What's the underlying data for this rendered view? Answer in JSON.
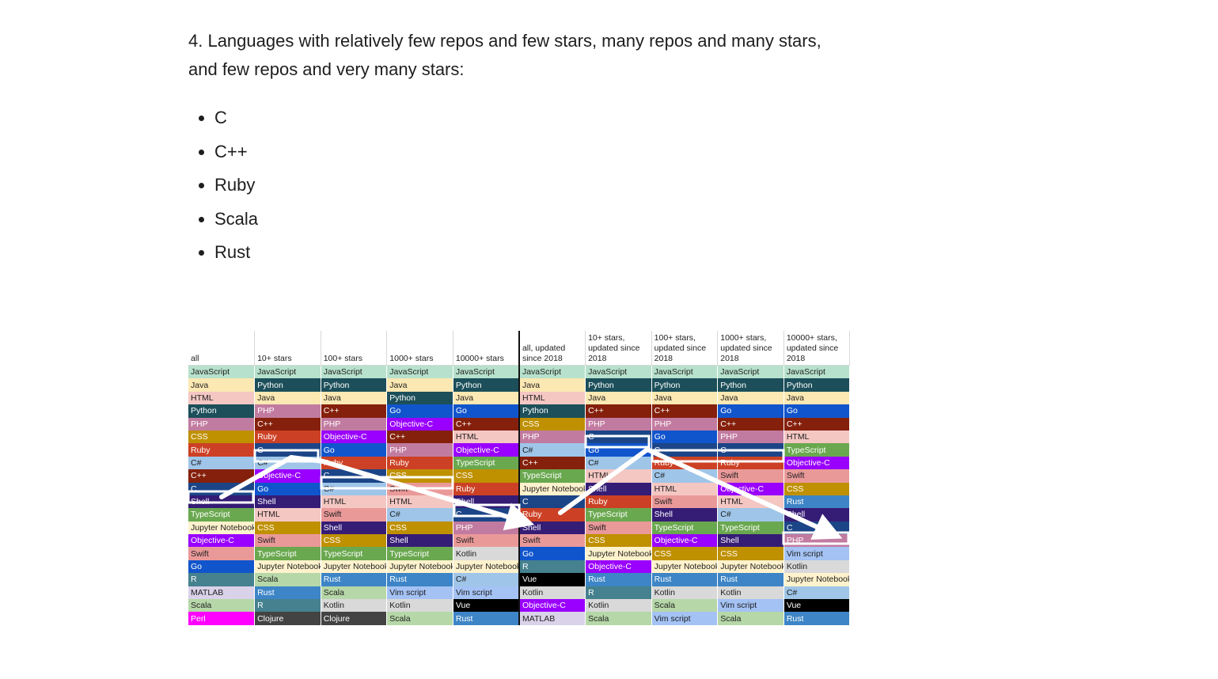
{
  "intro": "4. Languages with relatively few repos and few stars, many repos and many stars, and few repos and very many stars:",
  "bullets": [
    "C",
    "C++",
    "Ruby",
    "Scala",
    "Rust"
  ],
  "table": {
    "headers": [
      "all",
      "10+ stars",
      "100+ stars",
      "1000+ stars",
      "10000+ stars",
      "all, updated since 2018",
      "10+ stars, updated since 2018",
      "100+ stars, updated since 2018",
      "1000+ stars, updated since 2018",
      "10000+ stars, updated since 2018"
    ],
    "columns": [
      [
        "JavaScript",
        "Java",
        "HTML",
        "Python",
        "PHP",
        "CSS",
        "Ruby",
        "C#",
        "C++",
        "C",
        "Shell",
        "TypeScript",
        "Jupyter Notebook",
        "Objective-C",
        "Swift",
        "Go",
        "R",
        "MATLAB",
        "Scala",
        "Perl"
      ],
      [
        "JavaScript",
        "Python",
        "Java",
        "PHP",
        "C++",
        "Ruby",
        "C",
        "C#",
        "Objective-C",
        "Go",
        "Shell",
        "HTML",
        "CSS",
        "Swift",
        "TypeScript",
        "Jupyter Notebook",
        "Scala",
        "Rust",
        "R",
        "Clojure"
      ],
      [
        "JavaScript",
        "Python",
        "Java",
        "C++",
        "PHP",
        "Objective-C",
        "Go",
        "Ruby",
        "C",
        "C#",
        "HTML",
        "Swift",
        "Shell",
        "CSS",
        "TypeScript",
        "Jupyter Notebook",
        "Rust",
        "Scala",
        "Kotlin",
        "Clojure"
      ],
      [
        "JavaScript",
        "Java",
        "Python",
        "Go",
        "Objective-C",
        "C++",
        "PHP",
        "Ruby",
        "CSS",
        "Swift",
        "HTML",
        "C#",
        "CSS",
        "Shell",
        "TypeScript",
        "Jupyter Notebook",
        "Rust",
        "Vim script",
        "Kotlin",
        "Scala"
      ],
      [
        "JavaScript",
        "Python",
        "Java",
        "Go",
        "C++",
        "HTML",
        "Objective-C",
        "TypeScript",
        "CSS",
        "Ruby",
        "Shell",
        "C",
        "PHP",
        "Swift",
        "Kotlin",
        "Jupyter Notebook",
        "C#",
        "Vim script",
        "Vue",
        "Rust"
      ],
      [
        "JavaScript",
        "Java",
        "HTML",
        "Python",
        "CSS",
        "PHP",
        "C#",
        "C++",
        "TypeScript",
        "Jupyter Notebook",
        "C",
        "Ruby",
        "Shell",
        "Swift",
        "Go",
        "R",
        "Vue",
        "Kotlin",
        "Objective-C",
        "MATLAB"
      ],
      [
        "JavaScript",
        "Python",
        "Java",
        "C++",
        "PHP",
        "C",
        "Go",
        "C#",
        "HTML",
        "Shell",
        "Ruby",
        "TypeScript",
        "Swift",
        "CSS",
        "Jupyter Notebook",
        "Objective-C",
        "Rust",
        "R",
        "Kotlin",
        "Scala"
      ],
      [
        "JavaScript",
        "Python",
        "Java",
        "C++",
        "PHP",
        "Go",
        "C",
        "Ruby",
        "C#",
        "HTML",
        "Swift",
        "Shell",
        "TypeScript",
        "Objective-C",
        "CSS",
        "Jupyter Notebook",
        "Rust",
        "Kotlin",
        "Scala",
        "Vim script"
      ],
      [
        "JavaScript",
        "Python",
        "Java",
        "Go",
        "C++",
        "PHP",
        "C",
        "Ruby",
        "Swift",
        "Objective-C",
        "HTML",
        "C#",
        "TypeScript",
        "Shell",
        "CSS",
        "Jupyter Notebook",
        "Rust",
        "Kotlin",
        "Vim script",
        "Scala"
      ],
      [
        "JavaScript",
        "Python",
        "Java",
        "Go",
        "C++",
        "HTML",
        "TypeScript",
        "Objective-C",
        "Swift",
        "CSS",
        "Rust",
        "Shell",
        "C",
        "PHP",
        "Vim script",
        "Kotlin",
        "Jupyter Notebook",
        "C#",
        "Vue",
        "Rust"
      ]
    ],
    "colors": {
      "JavaScript": [
        "#b7e1cd",
        "#1e1e1e"
      ],
      "Java": [
        "#fce8b2",
        "#1e1e1e"
      ],
      "HTML": [
        "#f4c7c3",
        "#1e1e1e"
      ],
      "Python": [
        "#1c4f5a",
        "#ffffff"
      ],
      "PHP": [
        "#c27ba0",
        "#ffffff"
      ],
      "CSS": [
        "#bf9000",
        "#ffffff"
      ],
      "Ruby": [
        "#cc4125",
        "#ffffff"
      ],
      "C#": [
        "#9fc5e8",
        "#1e1e1e"
      ],
      "C++": [
        "#85200c",
        "#ffffff"
      ],
      "C": [
        "#1c4587",
        "#ffffff"
      ],
      "Shell": [
        "#351c75",
        "#ffffff"
      ],
      "TypeScript": [
        "#6aa84f",
        "#ffffff"
      ],
      "Jupyter Notebook": [
        "#fff2cc",
        "#1e1e1e"
      ],
      "Objective-C": [
        "#9900ff",
        "#ffffff"
      ],
      "Swift": [
        "#ea9999",
        "#1e1e1e"
      ],
      "Go": [
        "#1155cc",
        "#ffffff"
      ],
      "R": [
        "#45818e",
        "#ffffff"
      ],
      "MATLAB": [
        "#d9d2e9",
        "#1e1e1e"
      ],
      "Scala": [
        "#b6d7a8",
        "#1e1e1e"
      ],
      "Perl": [
        "#ff00ff",
        "#ffffff"
      ],
      "Rust": [
        "#3d85c6",
        "#ffffff"
      ],
      "Clojure": [
        "#434343",
        "#ffffff"
      ],
      "Kotlin": [
        "#d9d9d9",
        "#1e1e1e"
      ],
      "Vim script": [
        "#a4c2f4",
        "#1e1e1e"
      ],
      "Vue": [
        "#000000",
        "#ffffff"
      ]
    }
  }
}
